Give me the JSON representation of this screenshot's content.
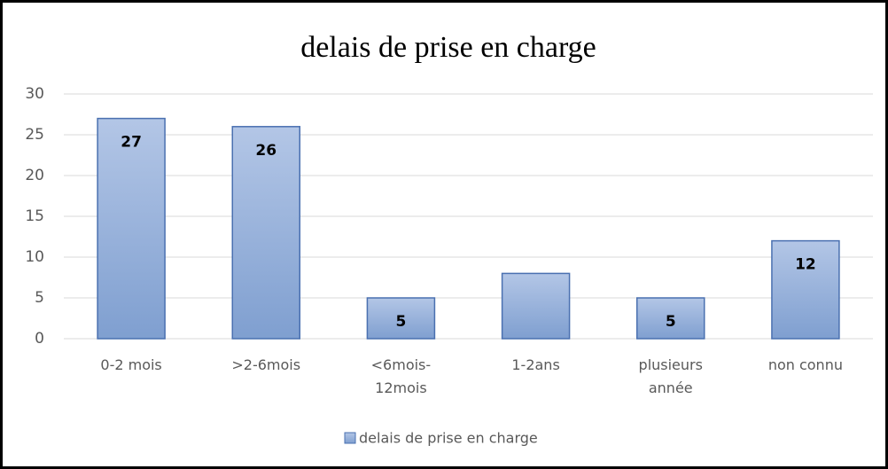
{
  "chart_data": {
    "type": "bar",
    "title": "delais de prise en charge",
    "categories": [
      "0-2 mois",
      ">2-6mois",
      "<6mois-12mois",
      "1-2ans",
      "plusieurs année",
      "non connu"
    ],
    "series": [
      {
        "name": "delais de prise en charge",
        "color": "#8eaad8",
        "values": [
          27,
          26,
          5,
          8,
          5,
          12
        ],
        "value_labels": [
          "27",
          "26",
          "5",
          null,
          "5",
          "12"
        ]
      }
    ],
    "ylim": [
      0,
      30
    ],
    "yticks": [
      0,
      5,
      10,
      15,
      20,
      25,
      30
    ],
    "grid": true,
    "legend": "bottom"
  }
}
